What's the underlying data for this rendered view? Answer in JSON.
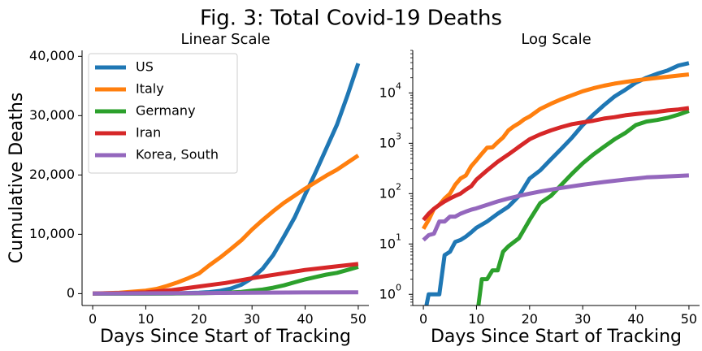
{
  "figure": {
    "title": "Fig. 3: Total Covid-19 Deaths"
  },
  "chart_data": [
    {
      "type": "line",
      "title": "Linear Scale",
      "xlabel": "Days Since Start of Tracking",
      "ylabel": "Cumulative Deaths",
      "xlim": [
        -2,
        52
      ],
      "ylim": [
        -2000,
        41000
      ],
      "xscale": "linear",
      "yscale": "linear",
      "xticks": [
        0,
        10,
        20,
        30,
        40,
        50
      ],
      "yticks": [
        0,
        10000,
        20000,
        30000,
        40000
      ],
      "ytick_labels": [
        "0",
        "10,000",
        "20,000",
        "30,000",
        "40,000"
      ],
      "grid": false,
      "legend": "top-left",
      "series": [
        {
          "name": "US",
          "color": "#1f77b4",
          "x": [
            0,
            5,
            10,
            15,
            20,
            22,
            24,
            26,
            28,
            30,
            32,
            34,
            36,
            38,
            40,
            42,
            44,
            46,
            48,
            50
          ],
          "y": [
            0,
            2,
            9,
            41,
            150,
            260,
            460,
            850,
            1500,
            2600,
            4200,
            6500,
            9600,
            12800,
            16700,
            20500,
            24500,
            28500,
            33500,
            38800
          ]
        },
        {
          "name": "Italy",
          "color": "#ff7f0e",
          "x": [
            0,
            5,
            10,
            12,
            14,
            16,
            18,
            20,
            22,
            24,
            26,
            28,
            30,
            32,
            34,
            36,
            38,
            40,
            42,
            44,
            46,
            48,
            50
          ],
          "y": [
            20,
            150,
            500,
            800,
            1300,
            1900,
            2600,
            3400,
            4800,
            6100,
            7500,
            9000,
            10800,
            12400,
            13900,
            15300,
            16500,
            17700,
            18800,
            19900,
            20900,
            22100,
            23300
          ]
        },
        {
          "name": "Germany",
          "color": "#2ca02c",
          "x": [
            0,
            10,
            15,
            20,
            25,
            28,
            30,
            32,
            34,
            36,
            38,
            40,
            42,
            44,
            46,
            48,
            50
          ],
          "y": [
            0,
            0,
            10,
            50,
            150,
            300,
            500,
            700,
            1000,
            1400,
            1900,
            2400,
            2800,
            3200,
            3500,
            4000,
            4500
          ]
        },
        {
          "name": "Iran",
          "color": "#d62728",
          "x": [
            0,
            5,
            10,
            15,
            20,
            25,
            30,
            35,
            40,
            45,
            50
          ],
          "y": [
            30,
            90,
            200,
            600,
            1200,
            1800,
            2600,
            3300,
            4000,
            4500,
            5000
          ]
        },
        {
          "name": "Korea, South",
          "color": "#9467bd",
          "x": [
            0,
            10,
            20,
            30,
            40,
            50
          ],
          "y": [
            12,
            50,
            100,
            150,
            200,
            230
          ]
        }
      ]
    },
    {
      "type": "line",
      "title": "Log Scale",
      "xlabel": "Days Since Start of Tracking",
      "ylabel": "",
      "xlim": [
        -2,
        52
      ],
      "ylim": [
        0.6,
        70000
      ],
      "xscale": "linear",
      "yscale": "log",
      "xticks": [
        0,
        10,
        20,
        30,
        40,
        50
      ],
      "yticks": [
        1,
        10,
        100,
        1000,
        10000
      ],
      "ytick_labels": [
        "10|0",
        "10|1",
        "10|2",
        "10|3",
        "10|4"
      ],
      "grid": false,
      "legend": "none",
      "series": [
        {
          "name": "US",
          "color": "#1f77b4",
          "x": [
            0,
            1,
            2,
            3,
            4,
            5,
            6,
            7,
            8,
            9,
            10,
            12,
            14,
            16,
            18,
            20,
            22,
            24,
            26,
            28,
            30,
            32,
            34,
            36,
            38,
            40,
            42,
            44,
            46,
            48,
            50
          ],
          "y": [
            0,
            1,
            1,
            1,
            6,
            7,
            11,
            12,
            14,
            17,
            21,
            28,
            40,
            55,
            90,
            200,
            290,
            480,
            780,
            1300,
            2300,
            3700,
            5700,
            8500,
            11500,
            16000,
            20000,
            24000,
            28000,
            35000,
            39000
          ]
        },
        {
          "name": "Italy",
          "color": "#ff7f0e",
          "x": [
            0,
            1,
            2,
            3,
            4,
            5,
            6,
            7,
            8,
            9,
            10,
            11,
            12,
            13,
            14,
            15,
            16,
            17,
            18,
            19,
            20,
            22,
            24,
            26,
            28,
            30,
            32,
            34,
            36,
            38,
            40,
            42,
            44,
            46,
            48,
            50
          ],
          "y": [
            20,
            30,
            50,
            60,
            80,
            100,
            150,
            200,
            230,
            350,
            460,
            620,
            820,
            830,
            1050,
            1300,
            1800,
            2160,
            2500,
            3000,
            3400,
            4800,
            6100,
            7500,
            9000,
            10800,
            12400,
            13900,
            15300,
            16500,
            17700,
            18800,
            19900,
            20900,
            22100,
            23300
          ]
        },
        {
          "name": "Germany",
          "color": "#2ca02c",
          "x": [
            10,
            11,
            12,
            13,
            14,
            15,
            16,
            18,
            20,
            22,
            24,
            26,
            28,
            30,
            32,
            34,
            36,
            38,
            40,
            42,
            44,
            46,
            48,
            50
          ],
          "y": [
            0,
            2,
            2,
            3,
            3,
            7,
            9,
            13,
            30,
            65,
            90,
            150,
            250,
            400,
            600,
            850,
            1200,
            1600,
            2300,
            2700,
            2900,
            3200,
            3700,
            4400
          ]
        },
        {
          "name": "Iran",
          "color": "#d62728",
          "x": [
            0,
            1,
            2,
            3,
            4,
            5,
            6,
            7,
            8,
            9,
            10,
            12,
            14,
            16,
            18,
            20,
            22,
            24,
            26,
            28,
            30,
            32,
            34,
            36,
            38,
            40,
            42,
            44,
            46,
            48,
            50
          ],
          "y": [
            30,
            40,
            50,
            60,
            70,
            80,
            90,
            100,
            120,
            140,
            190,
            290,
            430,
            600,
            850,
            1200,
            1500,
            1800,
            2100,
            2400,
            2600,
            2800,
            3100,
            3300,
            3600,
            3800,
            4000,
            4200,
            4500,
            4700,
            5000
          ]
        },
        {
          "name": "Korea, South",
          "color": "#9467bd",
          "x": [
            0,
            1,
            2,
            3,
            4,
            5,
            6,
            7,
            8,
            9,
            10,
            12,
            14,
            16,
            18,
            20,
            22,
            24,
            26,
            28,
            30,
            32,
            34,
            36,
            38,
            40,
            42,
            44,
            46,
            48,
            50
          ],
          "y": [
            12,
            15,
            16,
            28,
            28,
            35,
            35,
            40,
            44,
            48,
            51,
            60,
            70,
            80,
            90,
            100,
            110,
            120,
            130,
            140,
            150,
            160,
            170,
            180,
            190,
            200,
            210,
            215,
            220,
            225,
            230
          ]
        }
      ]
    }
  ]
}
